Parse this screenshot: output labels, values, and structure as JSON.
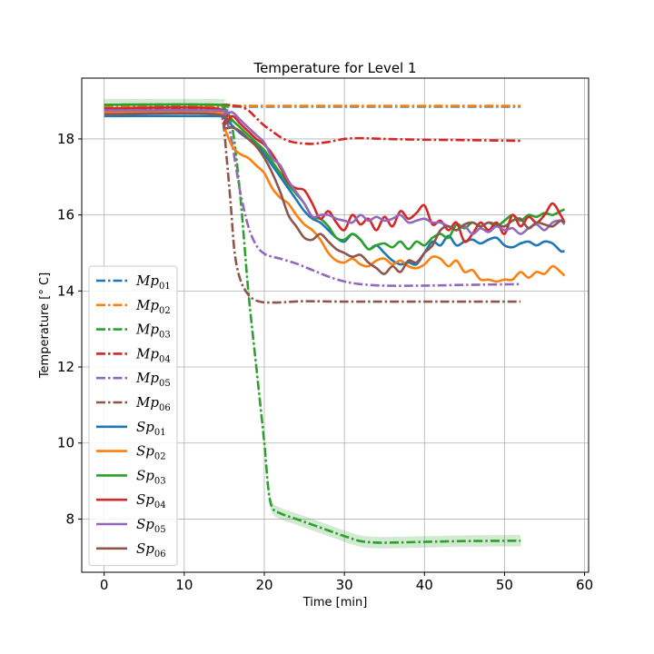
{
  "chart_data": {
    "type": "line",
    "title": "Temperature for Level 1",
    "xlabel": "Time [min]",
    "ylabel": "Temperature [$^\\circ$C]",
    "ylabel_display": "Temperature [° C]",
    "xlim": [
      -2.8,
      60.5
    ],
    "ylim": [
      6.6,
      19.6
    ],
    "xticks": [
      0,
      10,
      20,
      30,
      40,
      50,
      60
    ],
    "xtick_labels": [
      "0",
      "10",
      "20",
      "30",
      "40",
      "50",
      "60"
    ],
    "yticks": [
      8,
      10,
      12,
      14,
      16,
      18
    ],
    "ytick_labels": [
      "8",
      "10",
      "12",
      "14",
      "16",
      "18"
    ],
    "grid": true,
    "legend_position": "lower-left",
    "series": [
      {
        "name": "Mp01",
        "base": "Mp",
        "sub": "01",
        "style": "dashdot",
        "color": "#1f77b4",
        "x": [
          0,
          14,
          15,
          20,
          30,
          40,
          52
        ],
        "y": [
          18.85,
          18.85,
          18.85,
          18.85,
          18.85,
          18.85,
          18.85
        ]
      },
      {
        "name": "Mp02",
        "base": "Mp",
        "sub": "02",
        "style": "dashdot",
        "color": "#ff7f0e",
        "x": [
          0,
          14,
          15,
          20,
          30,
          40,
          52
        ],
        "y": [
          18.87,
          18.87,
          18.87,
          18.87,
          18.87,
          18.87,
          18.87
        ]
      },
      {
        "name": "Mp03",
        "base": "Mp",
        "sub": "03",
        "style": "dashdot",
        "color": "#2ca02c",
        "band": 0.15,
        "x": [
          0,
          14,
          15,
          16,
          17,
          18,
          19,
          20,
          20.5,
          21,
          22,
          24,
          26,
          28,
          30,
          32,
          34,
          36,
          40,
          45,
          52
        ],
        "y": [
          18.9,
          18.9,
          18.8,
          18.3,
          16.5,
          14.0,
          12.0,
          10.0,
          8.8,
          8.3,
          8.15,
          8.0,
          7.85,
          7.7,
          7.55,
          7.42,
          7.38,
          7.38,
          7.4,
          7.42,
          7.43
        ]
      },
      {
        "name": "Mp04",
        "base": "Mp",
        "sub": "04",
        "style": "dashdot",
        "color": "#d62728",
        "x": [
          0,
          14,
          15,
          16,
          17,
          18,
          19,
          20,
          21,
          22,
          23,
          24,
          25,
          26,
          28,
          30,
          32,
          35,
          40,
          45,
          52
        ],
        "y": [
          18.9,
          18.9,
          18.9,
          18.88,
          18.85,
          18.75,
          18.55,
          18.35,
          18.2,
          18.05,
          17.95,
          17.9,
          17.88,
          17.87,
          17.92,
          18.0,
          18.02,
          18.0,
          17.98,
          17.97,
          17.95
        ]
      },
      {
        "name": "Mp05",
        "base": "Mp",
        "sub": "05",
        "style": "dashdot",
        "color": "#9467bd",
        "x": [
          0,
          14,
          15,
          15.7,
          16.2,
          17,
          18,
          19,
          20,
          21,
          22,
          24,
          26,
          28,
          30,
          32,
          35,
          40,
          45,
          52
        ],
        "y": [
          18.8,
          18.8,
          18.6,
          18.2,
          17.6,
          16.6,
          15.7,
          15.2,
          14.98,
          14.9,
          14.85,
          14.72,
          14.55,
          14.38,
          14.25,
          14.18,
          14.14,
          14.14,
          14.16,
          14.18
        ]
      },
      {
        "name": "Mp06",
        "base": "Mp",
        "sub": "06",
        "style": "dashdot",
        "color": "#8c564b",
        "x": [
          0,
          14,
          14.8,
          15.3,
          15.8,
          16.3,
          17,
          18,
          19,
          20,
          22,
          25,
          30,
          35,
          40,
          45,
          52
        ],
        "y": [
          18.75,
          18.75,
          18.5,
          17.5,
          16.3,
          15.0,
          14.3,
          13.9,
          13.75,
          13.7,
          13.7,
          13.73,
          13.72,
          13.72,
          13.72,
          13.72,
          13.72
        ]
      },
      {
        "name": "Sp01",
        "base": "Sp",
        "sub": "01",
        "style": "solid",
        "color": "#1f77b4",
        "x": [
          0,
          14,
          15,
          16,
          17,
          18,
          19,
          20,
          21,
          22,
          23,
          24,
          25,
          26,
          27,
          28,
          29,
          30,
          31,
          32,
          33,
          34,
          35,
          36,
          37,
          38,
          39,
          40,
          41,
          42,
          43,
          44,
          45,
          46,
          47,
          48,
          49,
          50,
          51,
          52,
          53,
          54,
          55,
          56,
          57,
          57.5
        ],
        "y": [
          18.6,
          18.6,
          18.55,
          18.35,
          18.15,
          18.0,
          17.85,
          17.6,
          17.3,
          17.0,
          16.7,
          16.4,
          16.1,
          15.9,
          15.8,
          15.6,
          15.4,
          15.3,
          15.5,
          15.35,
          15.1,
          15.2,
          15.0,
          14.8,
          14.7,
          14.75,
          14.7,
          15.0,
          15.3,
          15.2,
          15.45,
          15.2,
          15.3,
          15.35,
          15.25,
          15.35,
          15.4,
          15.2,
          15.15,
          15.25,
          15.3,
          15.2,
          15.3,
          15.25,
          15.05,
          15.05
        ]
      },
      {
        "name": "Sp02",
        "base": "Sp",
        "sub": "02",
        "style": "solid",
        "color": "#ff7f0e",
        "x": [
          0,
          14,
          15,
          16,
          17,
          18,
          19,
          20,
          21,
          22,
          23,
          24,
          25,
          26,
          27,
          28,
          29,
          30,
          31,
          32,
          33,
          34,
          35,
          36,
          37,
          38,
          39,
          40,
          41,
          42,
          43,
          44,
          45,
          46,
          47,
          48,
          49,
          50,
          51,
          52,
          53,
          54,
          55,
          56,
          57,
          57.5
        ],
        "y": [
          18.7,
          18.7,
          18.3,
          17.8,
          17.6,
          17.5,
          17.3,
          17.1,
          16.7,
          16.45,
          16.3,
          16.0,
          15.75,
          15.6,
          15.35,
          15.0,
          14.8,
          14.75,
          14.85,
          14.7,
          14.65,
          14.8,
          14.85,
          14.7,
          14.8,
          14.65,
          14.6,
          14.7,
          14.9,
          14.85,
          14.65,
          14.8,
          14.5,
          14.55,
          14.3,
          14.3,
          14.25,
          14.3,
          14.3,
          14.5,
          14.35,
          14.5,
          14.45,
          14.65,
          14.5,
          14.4
        ]
      },
      {
        "name": "Sp03",
        "base": "Sp",
        "sub": "03",
        "style": "solid",
        "color": "#2ca02c",
        "x": [
          0,
          14,
          15,
          16,
          17,
          18,
          19,
          20,
          21,
          22,
          23,
          24,
          25,
          26,
          27,
          28,
          29,
          30,
          31,
          32,
          33,
          34,
          35,
          36,
          37,
          38,
          39,
          40,
          41,
          42,
          43,
          44,
          45,
          46,
          47,
          48,
          49,
          50,
          51,
          52,
          53,
          54,
          55,
          56,
          57,
          57.5
        ],
        "y": [
          18.9,
          18.9,
          18.8,
          18.5,
          18.3,
          18.1,
          17.9,
          17.7,
          17.4,
          17.1,
          16.8,
          16.55,
          16.3,
          15.95,
          15.9,
          15.7,
          15.4,
          15.35,
          15.5,
          15.35,
          15.1,
          15.2,
          15.25,
          15.15,
          15.3,
          15.1,
          15.3,
          15.2,
          15.4,
          15.5,
          15.4,
          15.75,
          15.65,
          15.8,
          15.7,
          15.8,
          15.7,
          15.85,
          16.0,
          15.85,
          16.0,
          15.95,
          16.05,
          16.0,
          16.1,
          16.15
        ]
      },
      {
        "name": "Sp04",
        "base": "Sp",
        "sub": "04",
        "style": "solid",
        "color": "#d62728",
        "x": [
          0,
          14,
          15,
          16,
          17,
          18,
          19,
          20,
          21,
          22,
          23,
          24,
          25,
          26,
          27,
          28,
          29,
          30,
          31,
          32,
          33,
          34,
          35,
          36,
          37,
          38,
          39,
          40,
          41,
          42,
          43,
          44,
          45,
          46,
          47,
          48,
          49,
          50,
          51,
          52,
          53,
          54,
          55,
          56,
          57,
          57.5
        ],
        "y": [
          18.8,
          18.8,
          18.4,
          18.6,
          18.4,
          18.2,
          18.0,
          17.85,
          17.6,
          17.25,
          16.85,
          16.7,
          16.65,
          16.3,
          15.9,
          16.1,
          15.8,
          15.6,
          16.0,
          15.75,
          15.9,
          15.6,
          15.95,
          15.7,
          16.1,
          15.9,
          16.05,
          16.25,
          15.75,
          15.85,
          15.6,
          15.8,
          15.3,
          15.5,
          15.8,
          15.6,
          15.8,
          15.5,
          16.0,
          15.7,
          15.95,
          15.8,
          16.0,
          16.3,
          16.0,
          15.8
        ]
      },
      {
        "name": "Sp05",
        "base": "Sp",
        "sub": "05",
        "style": "solid",
        "color": "#9467bd",
        "x": [
          0,
          14,
          15,
          16,
          17,
          18,
          19,
          20,
          21,
          22,
          23,
          24,
          25,
          26,
          27,
          28,
          29,
          30,
          31,
          32,
          33,
          34,
          35,
          36,
          37,
          38,
          39,
          40,
          41,
          42,
          43,
          44,
          45,
          46,
          47,
          48,
          49,
          50,
          51,
          52,
          53,
          54,
          55,
          56,
          57,
          57.5
        ],
        "y": [
          18.75,
          18.75,
          18.65,
          18.7,
          18.5,
          18.3,
          18.1,
          17.9,
          17.5,
          17.3,
          16.9,
          16.6,
          16.3,
          15.95,
          16.0,
          16.0,
          15.9,
          15.85,
          15.8,
          16.0,
          15.85,
          15.95,
          15.85,
          15.9,
          16.0,
          15.8,
          15.85,
          15.9,
          15.8,
          15.8,
          15.7,
          15.6,
          15.7,
          15.5,
          15.65,
          15.55,
          15.7,
          15.6,
          15.65,
          15.5,
          15.65,
          15.75,
          15.6,
          15.8,
          15.85,
          15.75
        ]
      },
      {
        "name": "Sp06",
        "base": "Sp",
        "sub": "06",
        "style": "solid",
        "color": "#8c564b",
        "x": [
          0,
          14,
          15,
          16,
          17,
          18,
          19,
          20,
          21,
          22,
          23,
          24,
          25,
          26,
          27,
          28,
          29,
          30,
          31,
          32,
          33,
          34,
          35,
          36,
          37,
          38,
          39,
          40,
          41,
          42,
          43,
          44,
          45,
          46,
          47,
          48,
          49,
          50,
          51,
          52,
          53,
          54,
          55,
          56,
          57,
          57.5
        ],
        "y": [
          18.65,
          18.65,
          18.3,
          18.3,
          18.2,
          18.0,
          17.8,
          17.5,
          17.1,
          16.6,
          16.0,
          15.7,
          15.4,
          15.35,
          15.5,
          15.3,
          15.1,
          15.0,
          14.9,
          14.95,
          14.75,
          14.6,
          14.45,
          14.65,
          14.5,
          14.8,
          14.75,
          15.0,
          15.2,
          15.6,
          15.7,
          15.6,
          15.75,
          15.8,
          15.7,
          15.8,
          15.75,
          15.7,
          15.85,
          15.9,
          15.65,
          15.8,
          15.75,
          15.7,
          15.85,
          15.8
        ]
      }
    ]
  }
}
